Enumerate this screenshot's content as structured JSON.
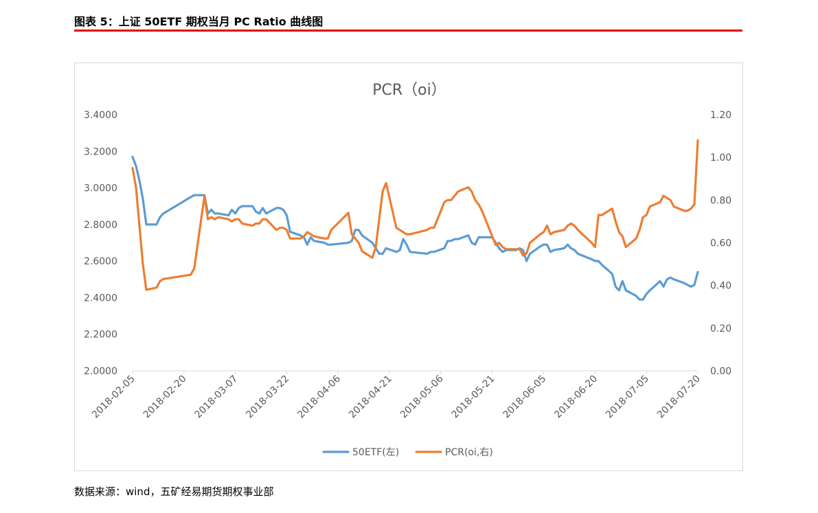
{
  "header": {
    "title": "图表 5：上证 50ETF 期权当月 PC Ratio 曲线图"
  },
  "source": "数据来源：wind，五矿经易期货期权事业部",
  "colors": {
    "etf": "#5b9bd5",
    "pcr": "#ed7d31",
    "accent_rule": "#e00000",
    "axis": "#d9d9d9",
    "text": "#595959"
  },
  "chart_data": {
    "type": "line",
    "title": "PCR（oi）",
    "x_tick_labels": [
      "2018-02-05",
      "2018-02-20",
      "2018-03-07",
      "2018-03-22",
      "2018-04-06",
      "2018-04-21",
      "2018-05-06",
      "2018-05-21",
      "2018-06-05",
      "2018-06-20",
      "2018-07-05",
      "2018-07-20"
    ],
    "x_range": [
      "2018-02-05",
      "2018-07-20"
    ],
    "y_left": {
      "min": 2.0,
      "max": 3.4,
      "step": 0.2,
      "tick_labels": [
        "2.0000",
        "2.2000",
        "2.4000",
        "2.6000",
        "2.8000",
        "3.0000",
        "3.2000",
        "3.4000"
      ]
    },
    "y_right": {
      "min": 0.0,
      "max": 1.2,
      "step": 0.2,
      "tick_labels": [
        "0.00",
        "0.20",
        "0.40",
        "0.60",
        "0.80",
        "1.00",
        "1.20"
      ]
    },
    "grid": false,
    "legend_position": "bottom",
    "series": [
      {
        "name": "50ETF(左)",
        "axis": "left",
        "x": [
          "2018-02-05",
          "2018-02-06",
          "2018-02-07",
          "2018-02-08",
          "2018-02-09",
          "2018-02-12",
          "2018-02-13",
          "2018-02-14",
          "2018-02-22",
          "2018-02-23",
          "2018-02-26",
          "2018-02-27",
          "2018-02-28",
          "2018-03-01",
          "2018-03-02",
          "2018-03-05",
          "2018-03-06",
          "2018-03-07",
          "2018-03-08",
          "2018-03-09",
          "2018-03-12",
          "2018-03-13",
          "2018-03-14",
          "2018-03-15",
          "2018-03-16",
          "2018-03-19",
          "2018-03-20",
          "2018-03-21",
          "2018-03-22",
          "2018-03-23",
          "2018-03-26",
          "2018-03-27",
          "2018-03-28",
          "2018-03-29",
          "2018-03-30",
          "2018-04-02",
          "2018-04-03",
          "2018-04-04",
          "2018-04-09",
          "2018-04-10",
          "2018-04-11",
          "2018-04-12",
          "2018-04-13",
          "2018-04-16",
          "2018-04-17",
          "2018-04-18",
          "2018-04-19",
          "2018-04-20",
          "2018-04-23",
          "2018-04-24",
          "2018-04-25",
          "2018-04-26",
          "2018-04-27",
          "2018-05-02",
          "2018-05-03",
          "2018-05-04",
          "2018-05-07",
          "2018-05-08",
          "2018-05-09",
          "2018-05-10",
          "2018-05-11",
          "2018-05-14",
          "2018-05-15",
          "2018-05-16",
          "2018-05-17",
          "2018-05-18",
          "2018-05-21",
          "2018-05-22",
          "2018-05-23",
          "2018-05-24",
          "2018-05-25",
          "2018-05-28",
          "2018-05-29",
          "2018-05-30",
          "2018-05-31",
          "2018-06-01",
          "2018-06-04",
          "2018-06-05",
          "2018-06-06",
          "2018-06-07",
          "2018-06-08",
          "2018-06-11",
          "2018-06-12",
          "2018-06-13",
          "2018-06-14",
          "2018-06-15",
          "2018-06-19",
          "2018-06-20",
          "2018-06-21",
          "2018-06-22",
          "2018-06-25",
          "2018-06-26",
          "2018-06-27",
          "2018-06-28",
          "2018-06-29",
          "2018-07-02",
          "2018-07-03",
          "2018-07-04",
          "2018-07-05",
          "2018-07-06",
          "2018-07-09",
          "2018-07-10",
          "2018-07-11",
          "2018-07-12",
          "2018-07-13",
          "2018-07-16",
          "2018-07-17",
          "2018-07-18",
          "2018-07-19",
          "2018-07-20"
        ],
        "values": [
          3.17,
          3.12,
          3.04,
          2.94,
          2.8,
          2.8,
          2.84,
          2.86,
          2.95,
          2.96,
          2.96,
          2.86,
          2.88,
          2.86,
          2.86,
          2.85,
          2.88,
          2.86,
          2.89,
          2.9,
          2.9,
          2.87,
          2.86,
          2.89,
          2.86,
          2.89,
          2.89,
          2.88,
          2.85,
          2.76,
          2.74,
          2.73,
          2.69,
          2.73,
          2.71,
          2.7,
          2.69,
          2.69,
          2.7,
          2.71,
          2.77,
          2.77,
          2.74,
          2.7,
          2.67,
          2.64,
          2.64,
          2.67,
          2.65,
          2.66,
          2.72,
          2.69,
          2.65,
          2.64,
          2.65,
          2.65,
          2.67,
          2.71,
          2.71,
          2.72,
          2.72,
          2.74,
          2.7,
          2.69,
          2.73,
          2.73,
          2.73,
          2.7,
          2.67,
          2.65,
          2.66,
          2.66,
          2.67,
          2.66,
          2.6,
          2.64,
          2.68,
          2.69,
          2.69,
          2.65,
          2.66,
          2.67,
          2.69,
          2.67,
          2.66,
          2.64,
          2.61,
          2.6,
          2.6,
          2.58,
          2.53,
          2.46,
          2.44,
          2.49,
          2.44,
          2.41,
          2.39,
          2.39,
          2.42,
          2.44,
          2.49,
          2.46,
          2.5,
          2.51,
          2.5,
          2.48,
          2.47,
          2.46,
          2.47,
          2.54
        ]
      },
      {
        "name": "PCR(oi,右)",
        "axis": "right",
        "x": [
          "2018-02-05",
          "2018-02-06",
          "2018-02-07",
          "2018-02-08",
          "2018-02-09",
          "2018-02-12",
          "2018-02-13",
          "2018-02-14",
          "2018-02-22",
          "2018-02-23",
          "2018-02-26",
          "2018-02-27",
          "2018-02-28",
          "2018-03-01",
          "2018-03-02",
          "2018-03-05",
          "2018-03-06",
          "2018-03-07",
          "2018-03-08",
          "2018-03-09",
          "2018-03-12",
          "2018-03-13",
          "2018-03-14",
          "2018-03-15",
          "2018-03-16",
          "2018-03-19",
          "2018-03-20",
          "2018-03-21",
          "2018-03-22",
          "2018-03-23",
          "2018-03-26",
          "2018-03-27",
          "2018-03-28",
          "2018-03-29",
          "2018-03-30",
          "2018-04-02",
          "2018-04-03",
          "2018-04-04",
          "2018-04-09",
          "2018-04-10",
          "2018-04-11",
          "2018-04-12",
          "2018-04-13",
          "2018-04-16",
          "2018-04-17",
          "2018-04-18",
          "2018-04-19",
          "2018-04-20",
          "2018-04-23",
          "2018-04-24",
          "2018-04-25",
          "2018-04-26",
          "2018-04-27",
          "2018-05-02",
          "2018-05-03",
          "2018-05-04",
          "2018-05-07",
          "2018-05-08",
          "2018-05-09",
          "2018-05-10",
          "2018-05-11",
          "2018-05-14",
          "2018-05-15",
          "2018-05-16",
          "2018-05-17",
          "2018-05-18",
          "2018-05-21",
          "2018-05-22",
          "2018-05-23",
          "2018-05-24",
          "2018-05-25",
          "2018-05-28",
          "2018-05-29",
          "2018-05-30",
          "2018-05-31",
          "2018-06-01",
          "2018-06-04",
          "2018-06-05",
          "2018-06-06",
          "2018-06-07",
          "2018-06-08",
          "2018-06-11",
          "2018-06-12",
          "2018-06-13",
          "2018-06-14",
          "2018-06-15",
          "2018-06-19",
          "2018-06-20",
          "2018-06-21",
          "2018-06-22",
          "2018-06-25",
          "2018-06-26",
          "2018-06-27",
          "2018-06-28",
          "2018-06-29",
          "2018-07-02",
          "2018-07-03",
          "2018-07-04",
          "2018-07-05",
          "2018-07-06",
          "2018-07-09",
          "2018-07-10",
          "2018-07-11",
          "2018-07-12",
          "2018-07-13",
          "2018-07-16",
          "2018-07-17",
          "2018-07-18",
          "2018-07-19",
          "2018-07-20"
        ],
        "values": [
          0.95,
          0.86,
          0.68,
          0.5,
          0.38,
          0.39,
          0.42,
          0.43,
          0.45,
          0.48,
          0.82,
          0.71,
          0.72,
          0.71,
          0.72,
          0.71,
          0.7,
          0.71,
          0.71,
          0.69,
          0.68,
          0.69,
          0.69,
          0.71,
          0.71,
          0.66,
          0.67,
          0.67,
          0.66,
          0.62,
          0.62,
          0.63,
          0.65,
          0.64,
          0.63,
          0.62,
          0.62,
          0.66,
          0.74,
          0.64,
          0.62,
          0.6,
          0.56,
          0.53,
          0.58,
          0.71,
          0.84,
          0.88,
          0.67,
          0.66,
          0.65,
          0.64,
          0.64,
          0.66,
          0.67,
          0.67,
          0.79,
          0.8,
          0.8,
          0.82,
          0.84,
          0.86,
          0.84,
          0.8,
          0.78,
          0.75,
          0.63,
          0.59,
          0.6,
          0.58,
          0.57,
          0.57,
          0.57,
          0.54,
          0.55,
          0.6,
          0.64,
          0.65,
          0.68,
          0.64,
          0.65,
          0.66,
          0.68,
          0.69,
          0.68,
          0.66,
          0.6,
          0.58,
          0.73,
          0.73,
          0.76,
          0.7,
          0.65,
          0.63,
          0.58,
          0.62,
          0.66,
          0.72,
          0.73,
          0.77,
          0.79,
          0.82,
          0.81,
          0.8,
          0.77,
          0.75,
          0.75,
          0.76,
          0.78,
          1.08
        ]
      }
    ]
  }
}
